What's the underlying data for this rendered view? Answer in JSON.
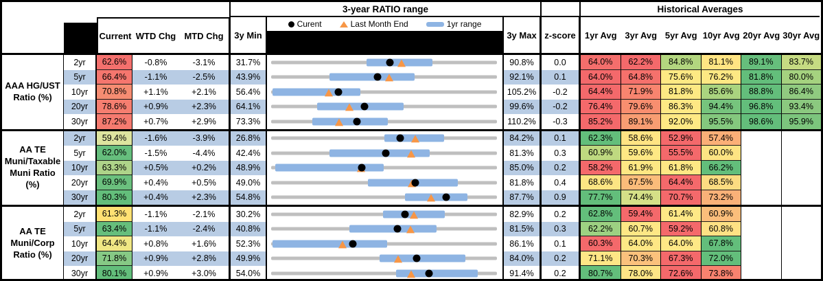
{
  "header": {
    "range_title": "3-year RATIO range",
    "averages_title": "Historical Averages",
    "col_current": "Current",
    "col_wtd": "WTD Chg",
    "col_mtd": "MTD Chg",
    "col_min": "3y Min",
    "col_max": "3y Max",
    "col_z": "z-score",
    "avg_cols": [
      "1yr Avg",
      "3yr Avg",
      "5yr Avg",
      "10yr Avg",
      "20yr Avg",
      "30yr Avg"
    ],
    "legend": {
      "current": "Curent",
      "last_month": "Last Month End",
      "range": "1yr range"
    }
  },
  "colors": {
    "row_alt": "#B8CCE4",
    "bar_1yr": "#8EB4E3",
    "track": "#BFBFBF",
    "current_dot": "#000000",
    "last_month_triangle": "#F79646",
    "heat_red": "#F4696B",
    "heat_yellow": "#FFE983",
    "heat_green": "#63BE7B"
  },
  "chart_data": {
    "type": "table",
    "description": "Muni ratio dashboard: current ratios, changes, 3-year min/max with 1yr range bullet chart (dot=current, triangle=last month end), z-score and historical averages",
    "groups": [
      {
        "label": "AAA HG/UST\nRatio (%)",
        "rows": [
          {
            "tenor": "2yr",
            "current": "62.6%",
            "current_bg": "#F4706D",
            "wtd": "-0.8%",
            "mtd": "-3.1%",
            "min": "31.7%",
            "max": "90.8%",
            "z": "0.0",
            "min_v": 31.7,
            "max_v": 90.8,
            "cur_v": 62.6,
            "lme_v": 65.7,
            "bar": [
              56.4,
              73.8
            ],
            "avgs": [
              {
                "v": "64.0%",
                "bg": "#F46E6C"
              },
              {
                "v": "62.2%",
                "bg": "#F4696B"
              },
              {
                "v": "84.8%",
                "bg": "#B3D67F"
              },
              {
                "v": "81.1%",
                "bg": "#FFE483"
              },
              {
                "v": "89.1%",
                "bg": "#66BE7C"
              },
              {
                "v": "83.7%",
                "bg": "#C6DB82"
              }
            ]
          },
          {
            "tenor": "5yr",
            "current": "66.4%",
            "current_bg": "#F5766E",
            "wtd": "-1.1%",
            "mtd": "-2.5%",
            "min": "43.9%",
            "max": "92.1%",
            "z": "0.1",
            "min_v": 43.9,
            "max_v": 92.1,
            "cur_v": 66.4,
            "lme_v": 68.9,
            "bar": [
              56.2,
              74.4
            ],
            "avgs": [
              {
                "v": "64.0%",
                "bg": "#F4696B"
              },
              {
                "v": "64.8%",
                "bg": "#F5716C"
              },
              {
                "v": "75.6%",
                "bg": "#FEE983"
              },
              {
                "v": "76.2%",
                "bg": "#FDE883"
              },
              {
                "v": "81.8%",
                "bg": "#63BE7B"
              },
              {
                "v": "80.0%",
                "bg": "#A5D27F"
              }
            ]
          },
          {
            "tenor": "10yr",
            "current": "70.8%",
            "current_bg": "#F68C72",
            "wtd": "+1.1%",
            "mtd": "+2.1%",
            "min": "56.4%",
            "max": "105.2%",
            "z": "-0.2",
            "min_v": 56.4,
            "max_v": 105.2,
            "cur_v": 70.8,
            "lme_v": 68.7,
            "bar": [
              56.4,
              75.5
            ],
            "avgs": [
              {
                "v": "64.4%",
                "bg": "#F4696B"
              },
              {
                "v": "71.9%",
                "bg": "#F8846F"
              },
              {
                "v": "81.8%",
                "bg": "#FDE983"
              },
              {
                "v": "85.6%",
                "bg": "#AAD47F"
              },
              {
                "v": "88.8%",
                "bg": "#63BE7B"
              },
              {
                "v": "86.4%",
                "bg": "#90CA80"
              }
            ]
          },
          {
            "tenor": "20yr",
            "current": "78.6%",
            "current_bg": "#F57E70",
            "wtd": "+0.9%",
            "mtd": "+2.3%",
            "min": "64.1%",
            "max": "99.6%",
            "z": "-0.2",
            "min_v": 64.1,
            "max_v": 99.6,
            "cur_v": 78.6,
            "lme_v": 76.3,
            "bar": [
              71.2,
              84.8
            ],
            "avgs": [
              {
                "v": "76.4%",
                "bg": "#F4696B"
              },
              {
                "v": "79.6%",
                "bg": "#F88E6F"
              },
              {
                "v": "86.3%",
                "bg": "#FEE884"
              },
              {
                "v": "94.4%",
                "bg": "#76C47D"
              },
              {
                "v": "96.8%",
                "bg": "#63BE7B"
              },
              {
                "v": "93.4%",
                "bg": "#8BC97F"
              }
            ]
          },
          {
            "tenor": "30yr",
            "current": "87.2%",
            "current_bg": "#F57A6F",
            "wtd": "+0.7%",
            "mtd": "+2.9%",
            "min": "73.3%",
            "max": "110.2%",
            "z": "-0.3",
            "min_v": 73.3,
            "max_v": 110.2,
            "cur_v": 87.2,
            "lme_v": 84.3,
            "bar": [
              79.9,
              92.3
            ],
            "avgs": [
              {
                "v": "85.2%",
                "bg": "#F4696B"
              },
              {
                "v": "89.1%",
                "bg": "#F89D72"
              },
              {
                "v": "92.0%",
                "bg": "#FEE984"
              },
              {
                "v": "95.5%",
                "bg": "#84C87E"
              },
              {
                "v": "98.6%",
                "bg": "#63BE7B"
              },
              {
                "v": "95.9%",
                "bg": "#7CC57D"
              }
            ]
          }
        ]
      },
      {
        "label": "AA TE\nMuni/Taxable\nMuni Ratio\n(%)",
        "rows": [
          {
            "tenor": "2yr",
            "current": "59.4%",
            "current_bg": "#DDE49F",
            "wtd": "-1.6%",
            "mtd": "-3.9%",
            "min": "26.8%",
            "max": "84.2%",
            "z": "0.1",
            "min_v": 26.8,
            "max_v": 84.2,
            "cur_v": 59.4,
            "lme_v": 63.3,
            "bar": [
              55.4,
              70.7
            ],
            "avgs": [
              {
                "v": "62.3%",
                "bg": "#63BE7B"
              },
              {
                "v": "58.6%",
                "bg": "#FFE483"
              },
              {
                "v": "52.9%",
                "bg": "#F4696B"
              },
              {
                "v": "57.4%",
                "bg": "#FBAF77"
              },
              null,
              null
            ]
          },
          {
            "tenor": "5yr",
            "current": "62.0%",
            "current_bg": "#66BE7D",
            "wtd": "-1.5%",
            "mtd": "-4.4%",
            "min": "42.4%",
            "max": "81.3%",
            "z": "0.3",
            "min_v": 42.4,
            "max_v": 81.3,
            "cur_v": 62.0,
            "lme_v": 66.4,
            "bar": [
              52.3,
              69.6
            ],
            "avgs": [
              {
                "v": "60.9%",
                "bg": "#BFD980"
              },
              {
                "v": "59.6%",
                "bg": "#FEE884"
              },
              {
                "v": "55.5%",
                "bg": "#F4696B"
              },
              {
                "v": "60.0%",
                "bg": "#FDE483"
              },
              null,
              null
            ]
          },
          {
            "tenor": "10yr",
            "current": "63.3%",
            "current_bg": "#AED389",
            "wtd": "+0.5%",
            "mtd": "+0.2%",
            "min": "48.9%",
            "max": "85.0%",
            "z": "0.2",
            "min_v": 48.9,
            "max_v": 85.0,
            "cur_v": 63.3,
            "lme_v": 63.1,
            "bar": [
              49.3,
              66.8
            ],
            "avgs": [
              {
                "v": "58.2%",
                "bg": "#F4696B"
              },
              {
                "v": "61.9%",
                "bg": "#FEE783"
              },
              {
                "v": "61.8%",
                "bg": "#FEE884"
              },
              {
                "v": "66.2%",
                "bg": "#63BE7B"
              },
              null,
              null
            ]
          },
          {
            "tenor": "20yr",
            "current": "69.9%",
            "current_bg": "#6BC07E",
            "wtd": "+0.4%",
            "mtd": "+0.5%",
            "min": "49.0%",
            "max": "81.8%",
            "z": "0.4",
            "min_v": 49.0,
            "max_v": 81.8,
            "cur_v": 69.9,
            "lme_v": 69.4,
            "bar": [
              62.9,
              76.1
            ],
            "avgs": [
              {
                "v": "68.6%",
                "bg": "#FDE583"
              },
              {
                "v": "67.5%",
                "bg": "#FBBC7A"
              },
              {
                "v": "64.4%",
                "bg": "#F4696B"
              },
              {
                "v": "68.5%",
                "bg": "#FCDC81"
              },
              null,
              null
            ]
          },
          {
            "tenor": "30yr",
            "current": "80.3%",
            "current_bg": "#63BE7B",
            "wtd": "+0.4%",
            "mtd": "+2.3%",
            "min": "54.8%",
            "max": "87.7%",
            "z": "0.9",
            "min_v": 54.8,
            "max_v": 87.7,
            "cur_v": 80.3,
            "lme_v": 78.0,
            "bar": [
              74.2,
              83.4
            ],
            "avgs": [
              {
                "v": "77.7%",
                "bg": "#63BE7B"
              },
              {
                "v": "74.4%",
                "bg": "#D5E087"
              },
              {
                "v": "70.7%",
                "bg": "#F4696B"
              },
              {
                "v": "73.2%",
                "bg": "#FAB178"
              },
              null,
              null
            ]
          }
        ]
      },
      {
        "label": "AA TE\nMuni/Corp\nRatio (%)",
        "rows": [
          {
            "tenor": "2yr",
            "current": "61.3%",
            "current_bg": "#FFE173",
            "wtd": "-1.1%",
            "mtd": "-2.1%",
            "min": "30.2%",
            "max": "82.9%",
            "z": "0.2",
            "min_v": 30.2,
            "max_v": 82.9,
            "cur_v": 61.3,
            "lme_v": 63.4,
            "bar": [
              56.2,
              70.7
            ],
            "avgs": [
              {
                "v": "62.8%",
                "bg": "#63BE7B"
              },
              {
                "v": "59.4%",
                "bg": "#F4696B"
              },
              {
                "v": "61.4%",
                "bg": "#FEE886"
              },
              {
                "v": "60.9%",
                "bg": "#FBBE7B"
              },
              null,
              null
            ]
          },
          {
            "tenor": "5yr",
            "current": "63.4%",
            "current_bg": "#66BE7C",
            "wtd": "-1.1%",
            "mtd": "-2.4%",
            "min": "40.8%",
            "max": "81.5%",
            "z": "0.3",
            "min_v": 40.8,
            "max_v": 81.5,
            "cur_v": 63.4,
            "lme_v": 65.8,
            "bar": [
              54.8,
              70.5
            ],
            "avgs": [
              {
                "v": "62.2%",
                "bg": "#9DD182"
              },
              {
                "v": "60.7%",
                "bg": "#FEE785"
              },
              {
                "v": "59.2%",
                "bg": "#F4696B"
              },
              {
                "v": "60.8%",
                "bg": "#FEE184"
              },
              null,
              null
            ]
          },
          {
            "tenor": "10yr",
            "current": "64.4%",
            "current_bg": "#F0E784",
            "wtd": "+0.8%",
            "mtd": "+1.6%",
            "min": "52.3%",
            "max": "86.1%",
            "z": "0.1",
            "min_v": 52.3,
            "max_v": 86.1,
            "cur_v": 64.4,
            "lme_v": 62.8,
            "bar": [
              52.3,
              69.6
            ],
            "avgs": [
              {
                "v": "60.3%",
                "bg": "#F4696B"
              },
              {
                "v": "64.0%",
                "bg": "#FEE785"
              },
              {
                "v": "64.0%",
                "bg": "#FEE886"
              },
              {
                "v": "67.8%",
                "bg": "#63BE7B"
              },
              null,
              null
            ]
          },
          {
            "tenor": "20yr",
            "current": "71.8%",
            "current_bg": "#86C985",
            "wtd": "+0.9%",
            "mtd": "+2.8%",
            "min": "49.9%",
            "max": "84.0%",
            "z": "0.2",
            "min_v": 49.9,
            "max_v": 84.0,
            "cur_v": 71.8,
            "lme_v": 69.0,
            "bar": [
              66.2,
              79.2
            ],
            "avgs": [
              {
                "v": "71.1%",
                "bg": "#FEE686"
              },
              {
                "v": "70.3%",
                "bg": "#FBC17C"
              },
              {
                "v": "67.3%",
                "bg": "#F4696B"
              },
              {
                "v": "72.0%",
                "bg": "#63BE7B"
              },
              null,
              null
            ]
          },
          {
            "tenor": "30yr",
            "current": "80.1%",
            "current_bg": "#63BE7B",
            "wtd": "+0.9%",
            "mtd": "+3.0%",
            "min": "54.0%",
            "max": "91.4%",
            "z": "0.2",
            "min_v": 54.0,
            "max_v": 91.4,
            "cur_v": 80.1,
            "lme_v": 77.1,
            "bar": [
              74.6,
              88.2
            ],
            "avgs": [
              {
                "v": "80.7%",
                "bg": "#63BE7B"
              },
              {
                "v": "78.0%",
                "bg": "#FEE586"
              },
              {
                "v": "72.6%",
                "bg": "#F4696B"
              },
              {
                "v": "73.8%",
                "bg": "#F8826F"
              },
              null,
              null
            ]
          }
        ]
      }
    ]
  }
}
